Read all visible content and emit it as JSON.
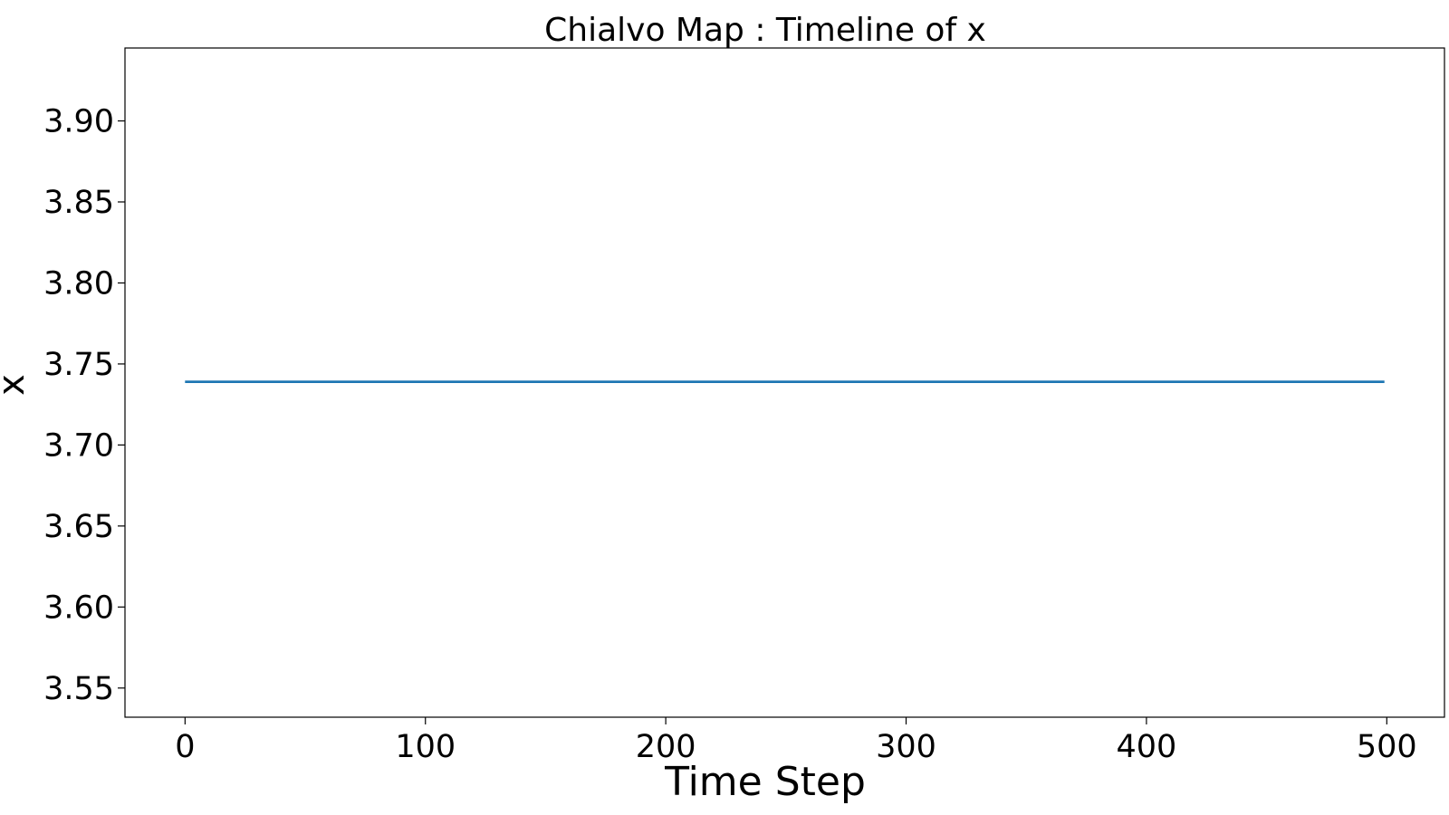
{
  "chart_data": {
    "type": "line",
    "title": "Chialvo Map : Timeline of x",
    "xlabel": "Time Step",
    "ylabel": "x",
    "xlim": [
      -25,
      524
    ],
    "ylim": [
      3.532,
      3.945
    ],
    "x_ticks": [
      0,
      100,
      200,
      300,
      400,
      500
    ],
    "x_tick_labels": [
      "0",
      "100",
      "200",
      "300",
      "400",
      "500"
    ],
    "y_ticks": [
      3.55,
      3.6,
      3.65,
      3.7,
      3.75,
      3.8,
      3.85,
      3.9
    ],
    "y_tick_labels": [
      "3.55",
      "3.60",
      "3.65",
      "3.70",
      "3.75",
      "3.80",
      "3.85",
      "3.90"
    ],
    "grid": false,
    "series": [
      {
        "color": "#1f77b4",
        "x": [
          0,
          100,
          200,
          300,
          400,
          499
        ],
        "y": [
          3.739,
          3.739,
          3.739,
          3.739,
          3.739,
          3.739
        ]
      }
    ]
  }
}
